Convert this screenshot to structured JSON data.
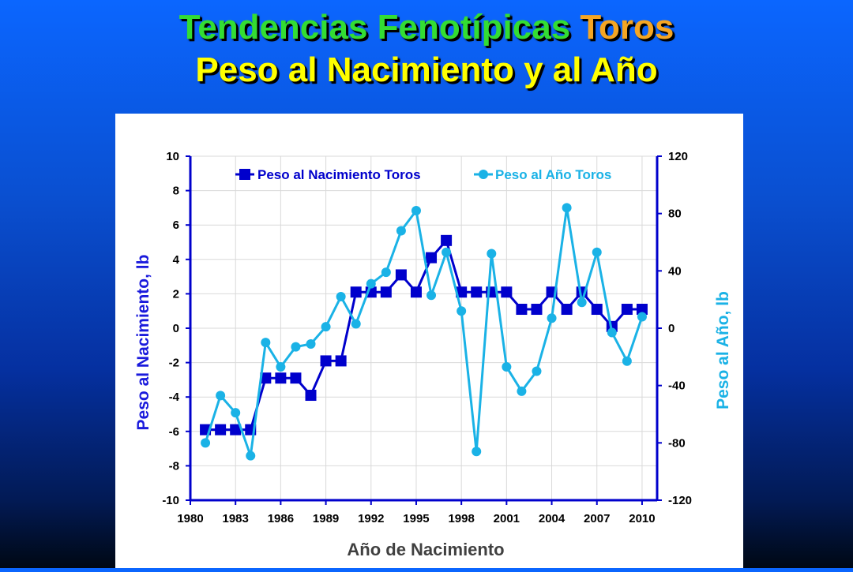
{
  "slide": {
    "title_part1": "Tendencias Fenotípicas",
    "title_part2": "Toros",
    "subtitle": "Peso al Nacimiento y al Año"
  },
  "colors": {
    "birth_series": "#0000cc",
    "yearling_series": "#1ab2e6",
    "title_green": "#33dd33",
    "title_orange": "#f5a623",
    "title_yellow": "#ffff00"
  },
  "chart_data": {
    "type": "line",
    "title": "",
    "xlabel": "Año de Nacimiento",
    "ylabel_left": "Peso al Nacimiento, lb",
    "ylabel_right": "Peso al Año, lb",
    "xlim": [
      1980,
      2011
    ],
    "x_ticks": [
      1980,
      1983,
      1986,
      1989,
      1992,
      1995,
      1998,
      2001,
      2004,
      2007,
      2010
    ],
    "ylim_left": [
      -10,
      10
    ],
    "y_ticks_left": [
      -10,
      -8,
      -6,
      -4,
      -2,
      0,
      2,
      4,
      6,
      8,
      10
    ],
    "ylim_right": [
      -120,
      120
    ],
    "y_ticks_right": [
      -120,
      -80,
      -40,
      0,
      40,
      80,
      120
    ],
    "grid": true,
    "legend_position": "top",
    "series": [
      {
        "name": "Peso al Nacimiento Toros",
        "axis": "left",
        "marker": "square",
        "x": [
          1981,
          1982,
          1983,
          1984,
          1985,
          1986,
          1987,
          1988,
          1989,
          1990,
          1991,
          1992,
          1993,
          1994,
          1995,
          1996,
          1997,
          1998,
          1999,
          2000,
          2001,
          2002,
          2003,
          2004,
          2005,
          2006,
          2007,
          2008,
          2009,
          2010
        ],
        "values": [
          -5.9,
          -5.9,
          -5.9,
          -5.9,
          -2.9,
          -2.9,
          -2.9,
          -3.9,
          -1.9,
          -1.9,
          2.1,
          2.1,
          2.1,
          3.1,
          2.1,
          4.1,
          5.1,
          2.1,
          2.1,
          2.1,
          2.1,
          1.1,
          1.1,
          2.1,
          1.1,
          2.1,
          1.1,
          0.1,
          1.1,
          1.1
        ]
      },
      {
        "name": "Peso al Año Toros",
        "axis": "right",
        "marker": "circle",
        "x": [
          1981,
          1982,
          1983,
          1984,
          1985,
          1986,
          1987,
          1988,
          1989,
          1990,
          1991,
          1992,
          1993,
          1994,
          1995,
          1996,
          1997,
          1998,
          1999,
          2000,
          2001,
          2002,
          2003,
          2004,
          2005,
          2006,
          2007,
          2008,
          2009,
          2010
        ],
        "values": [
          -80,
          -47,
          -59,
          -89,
          -10,
          -27,
          -13,
          -11,
          1,
          22,
          3,
          31,
          39,
          68,
          82,
          23,
          53,
          12,
          -86,
          52,
          -27,
          -44,
          -30,
          7,
          84,
          18,
          53,
          -3,
          -23,
          8
        ]
      }
    ]
  }
}
